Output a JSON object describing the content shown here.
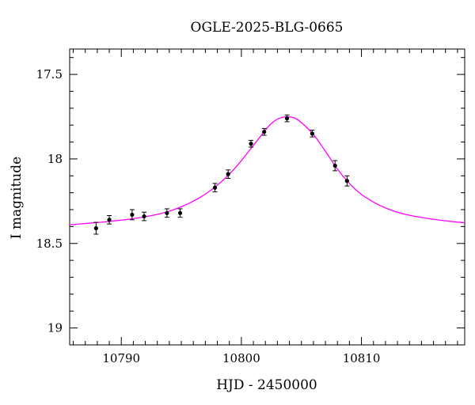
{
  "chart_data": {
    "type": "scatter",
    "title": "OGLE-2025-BLG-0665",
    "xlabel": "HJD - 2450000",
    "ylabel": "I magnitude",
    "xlim": [
      10785.7,
      10818.6
    ],
    "ylim": [
      19.1,
      17.35
    ],
    "y_inverted": true,
    "x_ticks": [
      10790,
      10800,
      10810
    ],
    "y_ticks": [
      17.5,
      18,
      18.5,
      19
    ],
    "x_tick_labels": [
      "10790",
      "10800",
      "10810"
    ],
    "y_tick_labels": [
      "17.5",
      "18",
      "18.5",
      "19"
    ],
    "x_minor_step": 1,
    "y_minor_step": 0.1,
    "grid": false,
    "colors": {
      "data": "#000000",
      "model": "#ff00ff",
      "axes": "#000000"
    },
    "series": [
      {
        "kind": "points_with_errorbars",
        "x": [
          10787.9,
          10789.0,
          10790.9,
          10791.9,
          10793.8,
          10794.9,
          10797.8,
          10798.9,
          10800.8,
          10801.9,
          10803.8,
          10805.9,
          10807.8,
          10808.8
        ],
        "y": [
          18.41,
          18.36,
          18.33,
          18.34,
          18.32,
          18.32,
          18.17,
          18.09,
          17.91,
          17.84,
          17.76,
          17.85,
          18.04,
          18.13
        ],
        "yerr": [
          0.035,
          0.025,
          0.03,
          0.025,
          0.025,
          0.025,
          0.025,
          0.025,
          0.02,
          0.02,
          0.02,
          0.02,
          0.03,
          0.03
        ]
      },
      {
        "kind": "model_curve",
        "x": [
          10785.7,
          10787.0,
          10788.0,
          10789.0,
          10790.0,
          10791.0,
          10792.0,
          10793.0,
          10794.0,
          10795.0,
          10796.0,
          10797.0,
          10798.0,
          10799.0,
          10800.0,
          10801.0,
          10802.0,
          10802.5,
          10803.0,
          10803.5,
          10803.8,
          10804.1,
          10804.5,
          10805.0,
          10806.0,
          10807.0,
          10808.0,
          10809.0,
          10810.0,
          10811.0,
          10812.0,
          10813.0,
          10814.0,
          10815.0,
          10816.0,
          10817.0,
          10818.6
        ],
        "y": [
          18.39,
          18.382,
          18.376,
          18.37,
          18.362,
          18.353,
          18.342,
          18.328,
          18.309,
          18.283,
          18.25,
          18.208,
          18.155,
          18.09,
          18.01,
          17.92,
          17.83,
          17.79,
          17.765,
          17.753,
          17.75,
          17.752,
          17.76,
          17.785,
          17.855,
          17.955,
          18.06,
          18.145,
          18.21,
          18.255,
          18.29,
          18.315,
          18.333,
          18.346,
          18.357,
          18.366,
          18.378
        ]
      }
    ]
  }
}
